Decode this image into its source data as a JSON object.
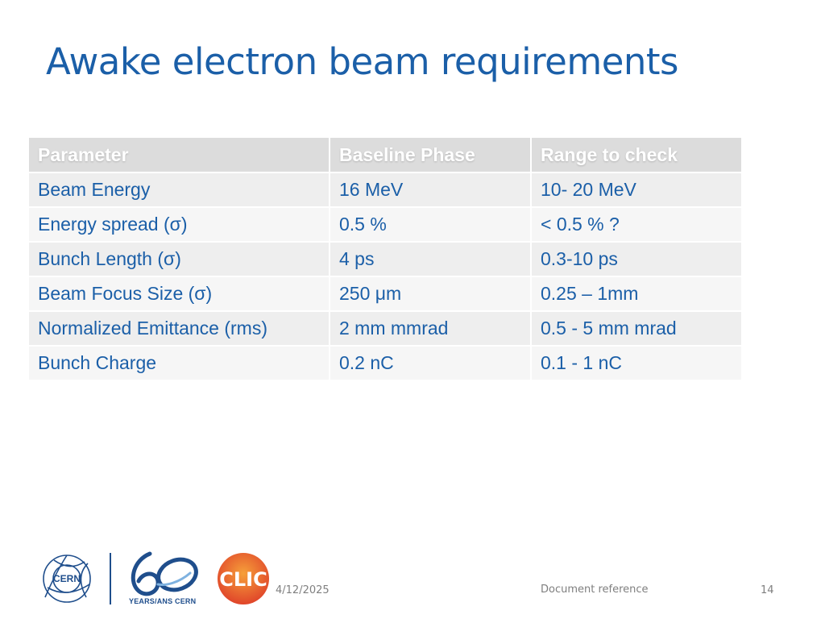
{
  "slide": {
    "title": "Awake electron beam requirements"
  },
  "table": {
    "headers": [
      "Parameter",
      "Baseline Phase",
      "Range to check"
    ],
    "rows": [
      [
        "Beam Energy",
        "16 MeV",
        "10- 20 MeV"
      ],
      [
        "Energy spread (σ)",
        "0.5 %",
        "< 0.5 % ?"
      ],
      [
        "Bunch Length (σ)",
        " 4 ps",
        "0.3-10 ps"
      ],
      [
        "Beam Focus Size (σ)",
        " 250 μm",
        "0.25 – 1mm"
      ],
      [
        "Normalized Emittance (rms)",
        "2 mm mmrad",
        "0.5 - 5 mm mrad"
      ],
      [
        "Bunch Charge",
        "0.2 nC",
        "0.1 - 1 nC"
      ]
    ]
  },
  "footer": {
    "date": "4/12/2025",
    "reference": "Document reference",
    "page_number": "14",
    "logos": {
      "cern": "CERN",
      "sixty_caption": "YEARS/ANS CERN",
      "clic": "CLIC"
    }
  },
  "colors": {
    "title": "#1b5fa8",
    "table_text": "#1b5fa8",
    "header_bg": "#dcdcdc",
    "row_bg_odd": "#eeeeee",
    "row_bg_even": "#f6f6f6",
    "footer_text": "#7f7f7f",
    "clic_red": "#e04a2a",
    "clic_orange": "#f28c28"
  }
}
